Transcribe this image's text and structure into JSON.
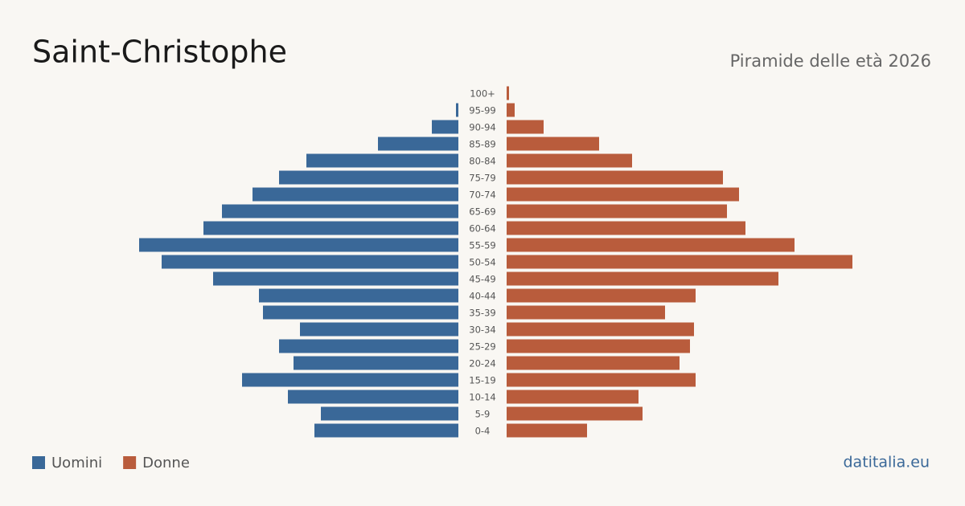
{
  "chart_data": {
    "type": "pyramid",
    "title": "Saint-Christophe",
    "subtitle": "Piramide delle età 2026",
    "categories": [
      "100+",
      "95-99",
      "90-94",
      "85-89",
      "80-84",
      "75-79",
      "70-74",
      "65-69",
      "60-64",
      "55-59",
      "50-54",
      "45-49",
      "40-44",
      "35-39",
      "30-34",
      "25-29",
      "20-24",
      "15-19",
      "10-14",
      "5-9",
      "0-4"
    ],
    "series": [
      {
        "name": "Uomini",
        "color": "#3a6898",
        "values": [
          0,
          3,
          33,
          100,
          189,
          223,
          256,
          294,
          317,
          397,
          369,
          305,
          248,
          243,
          197,
          223,
          205,
          269,
          212,
          171,
          179
        ]
      },
      {
        "name": "Donne",
        "color": "#b95c3c",
        "values": [
          3,
          10,
          46,
          115,
          156,
          269,
          289,
          274,
          297,
          358,
          430,
          338,
          235,
          197,
          233,
          228,
          215,
          235,
          164,
          169,
          100
        ]
      }
    ],
    "source": "datitalia.eu"
  }
}
